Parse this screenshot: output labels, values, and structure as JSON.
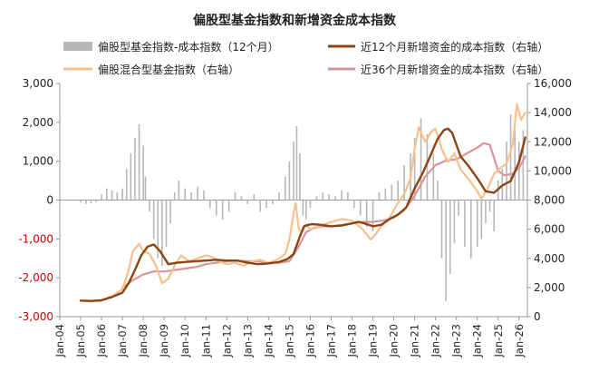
{
  "chart_data": {
    "type": "bar+line",
    "title": "偏股型基金指数和新增资金成本指数",
    "x_ticks": [
      "Jan-04",
      "Jan-05",
      "Jan-06",
      "Jan-07",
      "Jan-08",
      "Jan-09",
      "Jan-10",
      "Jan-11",
      "Jan-12",
      "Jan-13",
      "Jan-14",
      "Jan-15",
      "Jan-16",
      "Jan-17",
      "Jan-18",
      "Jan-19",
      "Jan-20",
      "Jan-21",
      "Jan-22",
      "Jan-23",
      "Jan-24",
      "Jan-25",
      "Jan-26"
    ],
    "y_left": {
      "range": [
        -3000,
        3000
      ],
      "ticks": [
        "3,000",
        "2,000",
        "1,000",
        "0",
        "-1,000",
        "-2,000",
        "-3,000"
      ],
      "tick_values": [
        3000,
        2000,
        1000,
        0,
        -1000,
        -2000,
        -3000
      ]
    },
    "y_right": {
      "range": [
        0,
        16000
      ],
      "ticks": [
        "16,000",
        "14,000",
        "12,000",
        "10,000",
        "8,000",
        "6,000",
        "4,000",
        "2,000",
        "0"
      ],
      "tick_values": [
        16000,
        14000,
        12000,
        10000,
        8000,
        6000,
        4000,
        2000,
        0
      ]
    },
    "grid": false,
    "legend_placement": "top",
    "colors": {
      "diff_bars": "#b7b7b7",
      "fund_index": "#f7c08f",
      "cost12": "#8b4513",
      "cost36": "#d9959a"
    },
    "series": [
      {
        "name": "偏股型基金指数-成本指数（12个月）",
        "kind": "bar",
        "axis": "left",
        "x": [
          2005.0,
          2005.25,
          2005.5,
          2005.75,
          2006.0,
          2006.25,
          2006.5,
          2006.75,
          2007.0,
          2007.2,
          2007.4,
          2007.6,
          2007.8,
          2008.0,
          2008.1,
          2008.3,
          2008.5,
          2008.7,
          2008.9,
          2009.1,
          2009.3,
          2009.5,
          2009.7,
          2010.0,
          2010.3,
          2010.6,
          2010.9,
          2011.2,
          2011.5,
          2011.8,
          2012.1,
          2012.4,
          2012.7,
          2013.0,
          2013.3,
          2013.6,
          2013.9,
          2014.2,
          2014.5,
          2014.8,
          2015.0,
          2015.2,
          2015.35,
          2015.5,
          2015.65,
          2015.8,
          2016.0,
          2016.3,
          2016.6,
          2016.9,
          2017.2,
          2017.5,
          2017.8,
          2018.1,
          2018.4,
          2018.7,
          2019.0,
          2019.3,
          2019.6,
          2019.9,
          2020.2,
          2020.5,
          2020.8,
          2021.0,
          2021.3,
          2021.6,
          2021.9,
          2022.1,
          2022.3,
          2022.5,
          2022.7,
          2022.9,
          2023.1,
          2023.4,
          2023.7,
          2024.0,
          2024.2,
          2024.4,
          2024.6,
          2024.8,
          2025.0,
          2025.2,
          2025.4,
          2025.6,
          2025.8,
          2026.0,
          2026.2
        ],
        "values": [
          -50,
          -100,
          -80,
          -50,
          150,
          300,
          250,
          200,
          300,
          800,
          1200,
          1600,
          1950,
          1400,
          600,
          -300,
          -1000,
          -1500,
          -1700,
          -1200,
          -600,
          200,
          500,
          300,
          200,
          350,
          250,
          -200,
          -400,
          -500,
          -300,
          200,
          100,
          -100,
          150,
          -300,
          -200,
          -100,
          200,
          600,
          1000,
          1500,
          1900,
          1200,
          -400,
          -500,
          -200,
          100,
          200,
          150,
          100,
          250,
          200,
          -200,
          -400,
          -700,
          -800,
          200,
          300,
          400,
          500,
          900,
          1200,
          1600,
          2100,
          1700,
          1200,
          500,
          -1500,
          -2600,
          -1900,
          -1100,
          -400,
          -1200,
          -1500,
          -1200,
          -1000,
          -600,
          -300,
          -800,
          500,
          800,
          1500,
          2200,
          1800,
          1500,
          1800
        ]
      },
      {
        "name": "近12个月新增资金的成本指数（右轴）",
        "kind": "line",
        "axis": "right",
        "x": [
          2005.0,
          2005.5,
          2006.0,
          2006.5,
          2007.0,
          2007.3,
          2007.6,
          2007.9,
          2008.2,
          2008.5,
          2008.8,
          2009.2,
          2009.6,
          2010.0,
          2010.5,
          2011.0,
          2011.5,
          2012.0,
          2012.5,
          2013.0,
          2013.5,
          2014.0,
          2014.5,
          2014.9,
          2015.2,
          2015.5,
          2015.7,
          2015.9,
          2016.1,
          2016.5,
          2017.0,
          2017.5,
          2018.0,
          2018.3,
          2018.6,
          2019.0,
          2019.4,
          2019.8,
          2020.2,
          2020.6,
          2021.0,
          2021.4,
          2021.8,
          2022.1,
          2022.4,
          2022.6,
          2022.8,
          2023.2,
          2023.6,
          2024.0,
          2024.4,
          2024.8,
          2025.2,
          2025.6,
          2026.0,
          2026.3
        ],
        "values": [
          1100,
          1080,
          1120,
          1350,
          1650,
          2300,
          3200,
          4200,
          4800,
          4950,
          4500,
          3600,
          3700,
          3750,
          3800,
          3850,
          3900,
          3850,
          3850,
          3700,
          3600,
          3650,
          3750,
          3950,
          4300,
          5500,
          6200,
          6300,
          6350,
          6300,
          6200,
          6250,
          6400,
          6500,
          6400,
          6200,
          6300,
          6700,
          7000,
          7500,
          8800,
          9900,
          11200,
          12200,
          12800,
          12900,
          12600,
          11000,
          10300,
          9500,
          8600,
          8500,
          9000,
          9300,
          10600,
          12300
        ]
      },
      {
        "name": "偏股混合型基金指数（右轴）",
        "kind": "line",
        "axis": "right",
        "x": [
          2005.0,
          2005.5,
          2006.0,
          2006.5,
          2007.0,
          2007.3,
          2007.5,
          2007.8,
          2008.0,
          2008.3,
          2008.6,
          2008.9,
          2009.2,
          2009.5,
          2009.8,
          2010.2,
          2010.6,
          2011.0,
          2011.3,
          2011.6,
          2012.0,
          2012.4,
          2012.8,
          2013.2,
          2013.6,
          2014.0,
          2014.4,
          2014.8,
          2015.0,
          2015.2,
          2015.3,
          2015.45,
          2015.6,
          2015.8,
          2016.0,
          2016.3,
          2016.6,
          2017.0,
          2017.5,
          2018.0,
          2018.5,
          2018.9,
          2019.1,
          2019.4,
          2019.8,
          2020.2,
          2020.5,
          2020.8,
          2021.0,
          2021.2,
          2021.5,
          2021.8,
          2022.0,
          2022.3,
          2022.6,
          2022.9,
          2023.2,
          2023.6,
          2024.0,
          2024.2,
          2024.5,
          2024.8,
          2025.1,
          2025.4,
          2025.7,
          2025.9,
          2026.1,
          2026.3
        ],
        "values": [
          1100,
          1050,
          1150,
          1400,
          1900,
          3200,
          4500,
          5000,
          4500,
          4300,
          3500,
          2300,
          2600,
          3500,
          4200,
          3800,
          4000,
          4200,
          4100,
          3800,
          3600,
          3700,
          3500,
          3800,
          3900,
          3700,
          3900,
          4300,
          5300,
          7100,
          7800,
          6000,
          5800,
          6300,
          6000,
          6100,
          6300,
          6500,
          6700,
          6600,
          6000,
          5300,
          5600,
          6200,
          6800,
          7800,
          8400,
          9500,
          11500,
          13000,
          12000,
          12700,
          12900,
          11500,
          10600,
          11200,
          10100,
          9400,
          8600,
          8100,
          8800,
          9800,
          10200,
          10500,
          11800,
          14600,
          13500,
          14000
        ]
      },
      {
        "name": "近36个月新增资金的成本指数（右轴）",
        "kind": "line",
        "axis": "right",
        "x": [
          2007.0,
          2007.5,
          2008.0,
          2008.5,
          2009.0,
          2009.5,
          2010.0,
          2010.5,
          2011.0,
          2011.5,
          2012.0,
          2012.5,
          2013.0,
          2013.5,
          2014.0,
          2014.5,
          2015.0,
          2015.4,
          2015.8,
          2016.2,
          2016.6,
          2017.0,
          2017.5,
          2018.0,
          2018.5,
          2019.0,
          2019.5,
          2020.0,
          2020.5,
          2021.0,
          2021.5,
          2022.0,
          2022.5,
          2023.0,
          2023.5,
          2024.0,
          2024.3,
          2024.6,
          2025.0,
          2025.3,
          2025.7,
          2026.0,
          2026.3
        ],
        "values": [
          2000,
          2500,
          2900,
          3100,
          3100,
          3200,
          3300,
          3400,
          3600,
          3700,
          3800,
          3850,
          3800,
          3800,
          3700,
          3700,
          3800,
          4700,
          5800,
          6100,
          6200,
          6200,
          6300,
          6400,
          6500,
          6500,
          6600,
          6800,
          7300,
          8300,
          9600,
          10400,
          10700,
          10800,
          11200,
          11600,
          11900,
          11800,
          10000,
          9700,
          9800,
          10200,
          11000
        ]
      }
    ]
  }
}
